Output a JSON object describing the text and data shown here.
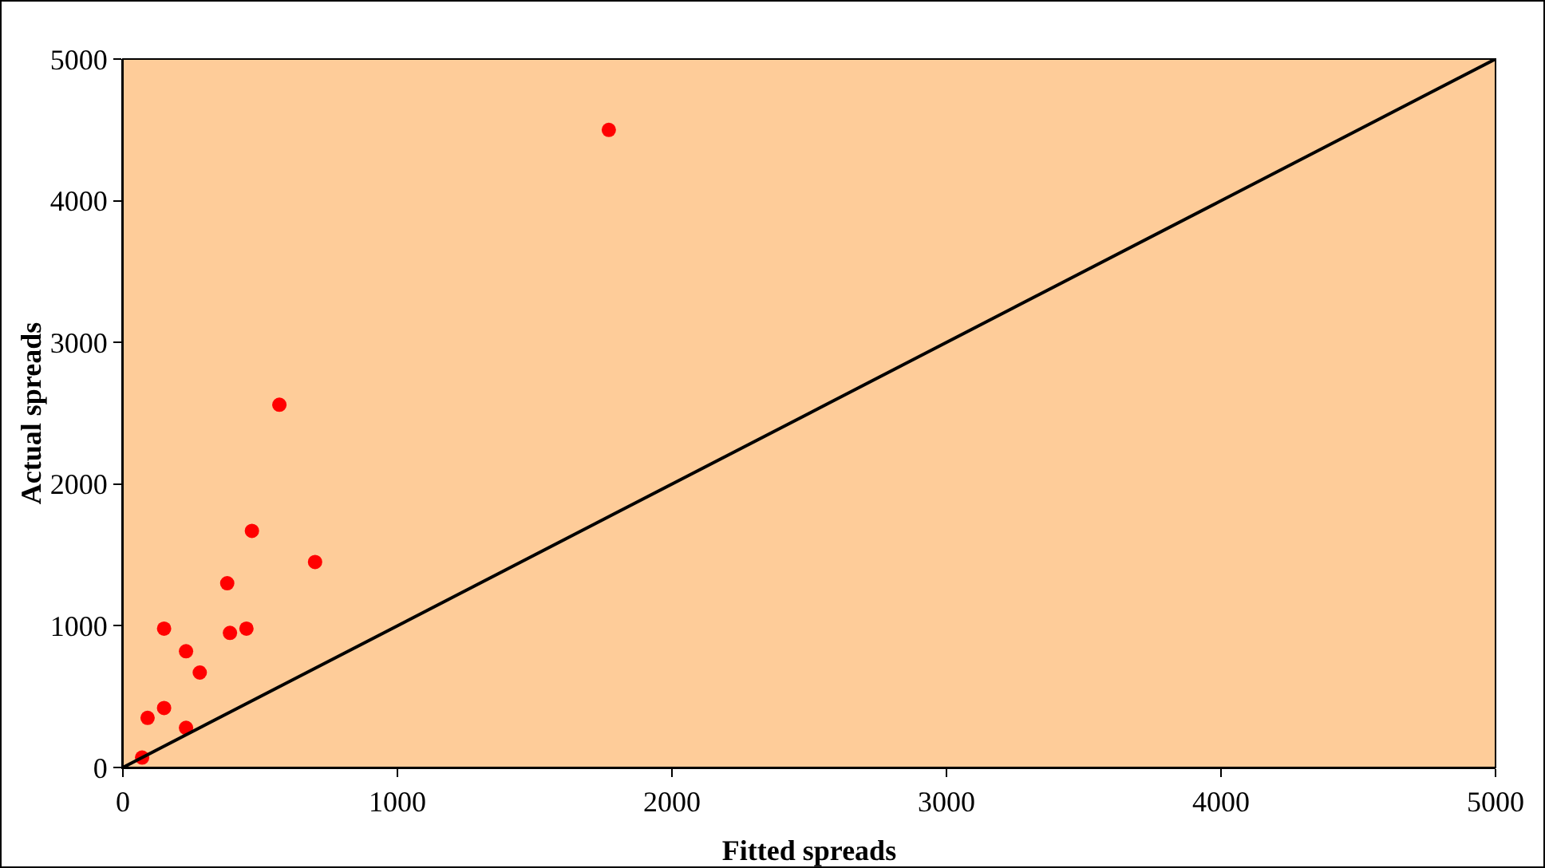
{
  "chart_data": {
    "type": "scatter",
    "xlabel": "Fitted spreads",
    "ylabel": "Actual spreads",
    "xlim": [
      0,
      5000
    ],
    "xticks": [
      0,
      1000,
      2000,
      3000,
      4000,
      5000
    ],
    "ylim": [
      0,
      5000
    ],
    "yticks": [
      0,
      1000,
      2000,
      3000,
      4000,
      5000
    ],
    "grid": false,
    "marker": "circle",
    "series": [
      {
        "color": "#ff0000",
        "x": [
          1770,
          570,
          470,
          700,
          380,
          150,
          390,
          450,
          230,
          280,
          150,
          90,
          230,
          70
        ],
        "values": [
          4500,
          2560,
          1670,
          1450,
          1300,
          980,
          950,
          980,
          820,
          670,
          420,
          350,
          280,
          70
        ]
      },
      {
        "type": "line",
        "color": "#000000",
        "x": [
          0,
          5000
        ],
        "values": [
          0,
          5000
        ],
        "marker": "none",
        "line_style": "solid"
      }
    ]
  }
}
